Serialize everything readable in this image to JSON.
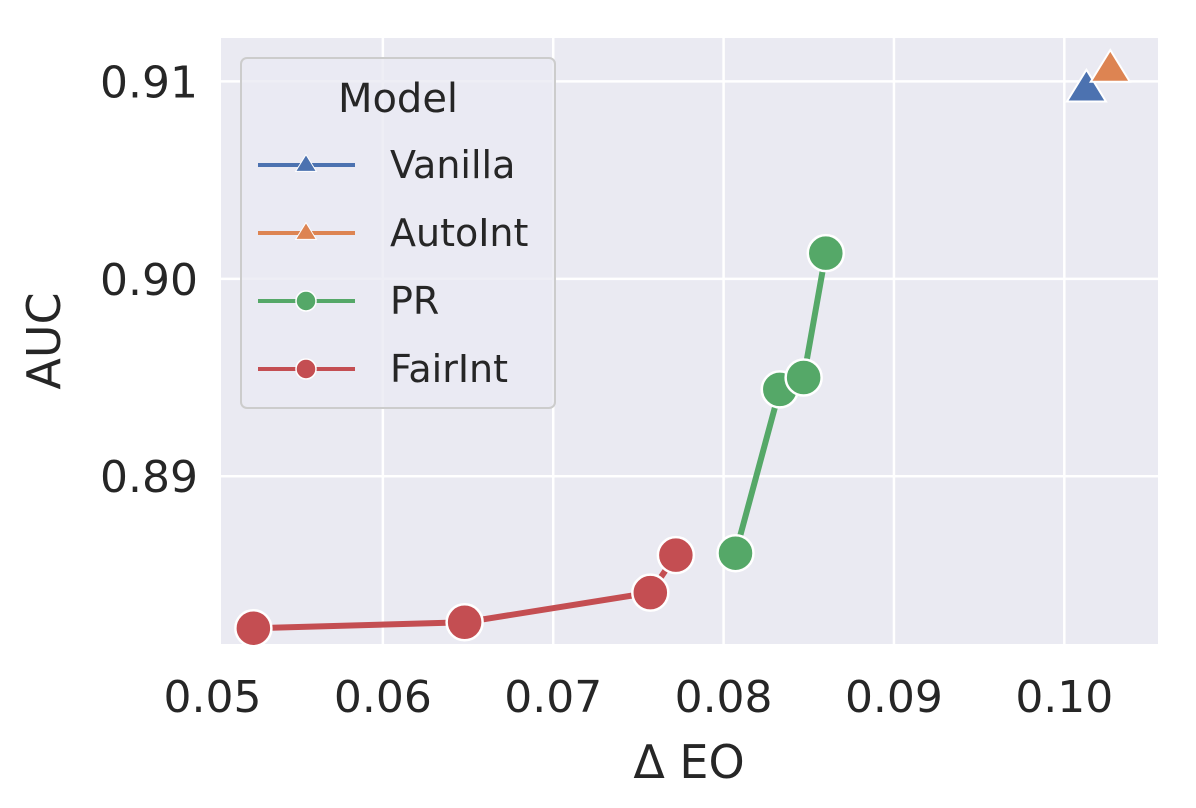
{
  "chart_data": {
    "type": "line",
    "xlabel": "Δ EO",
    "ylabel": "AUC",
    "xlim": [
      0.0505,
      0.1055
    ],
    "ylim": [
      0.8815,
      0.9122
    ],
    "xticks": [
      0.05,
      0.06,
      0.07,
      0.08,
      0.09,
      0.1
    ],
    "xtick_labels": [
      "0.05",
      "0.06",
      "0.07",
      "0.08",
      "0.09",
      "0.10"
    ],
    "yticks": [
      0.89,
      0.9,
      0.91
    ],
    "ytick_labels": [
      "0.89",
      "0.90",
      "0.91"
    ],
    "grid": true,
    "legend": {
      "title": "Model",
      "placement": "upper-left"
    },
    "series": [
      {
        "name": "Vanilla",
        "marker": "triangle",
        "color": "#4c72b0",
        "points": [
          [
            0.1013,
            0.9096
          ]
        ]
      },
      {
        "name": "AutoInt",
        "marker": "triangle",
        "color": "#dd8452",
        "points": [
          [
            0.1027,
            0.9106
          ]
        ]
      },
      {
        "name": "PR",
        "marker": "circle",
        "color": "#55a868",
        "points": [
          [
            0.0807,
            0.8861
          ],
          [
            0.0833,
            0.8944
          ],
          [
            0.0847,
            0.895
          ],
          [
            0.086,
            0.9013
          ]
        ]
      },
      {
        "name": "FairInt",
        "marker": "circle",
        "color": "#c44e52",
        "points": [
          [
            0.0524,
            0.8823
          ],
          [
            0.0648,
            0.8826
          ],
          [
            0.0757,
            0.8841
          ],
          [
            0.0772,
            0.886
          ]
        ]
      }
    ]
  }
}
